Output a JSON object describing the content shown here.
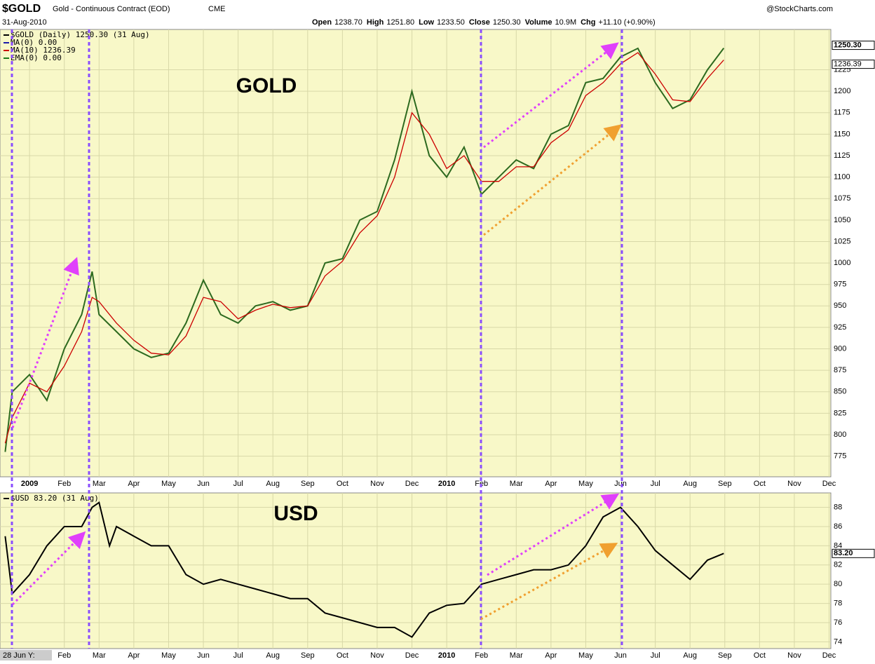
{
  "header": {
    "symbol": "$GOLD",
    "description": "Gold - Continuous Contract (EOD)",
    "exchange": "CME",
    "date": "31-Aug-2010",
    "source": "@StockCharts.com",
    "stats": [
      {
        "label": "Open",
        "value": "1238.70"
      },
      {
        "label": "High",
        "value": "1251.80"
      },
      {
        "label": "Low",
        "value": "1233.50"
      },
      {
        "label": "Close",
        "value": "1250.30"
      },
      {
        "label": "Volume",
        "value": "10.9M"
      },
      {
        "label": "Chg",
        "value": "+11.10 (+0.90%)"
      }
    ]
  },
  "chart_data": [
    {
      "type": "line",
      "legend": [
        "$GOLD (Daily) 1250.30 (31 Aug)",
        "MA(0) 0.00",
        "MA(10) 1236.39",
        "EMA(0) 0.00"
      ],
      "annotations": [
        "GOLD"
      ],
      "last_labels": [
        "1250.30",
        "1236.39"
      ],
      "x": [
        -0.7,
        -0.5,
        0,
        0.5,
        1,
        1.5,
        1.8,
        2,
        2.5,
        3,
        3.5,
        4,
        4.5,
        5,
        5.5,
        6,
        6.5,
        7,
        7.5,
        8,
        8.5,
        9,
        9.5,
        10,
        10.5,
        11,
        11.5,
        12,
        12.5,
        13,
        13.5,
        14,
        14.5,
        15,
        15.5,
        16,
        16.5,
        17,
        17.5,
        18,
        18.5,
        19,
        19.5,
        19.97
      ],
      "series": [
        {
          "name": "$GOLD",
          "color": "#2d6a1f",
          "values": [
            780,
            850,
            870,
            840,
            900,
            940,
            990,
            940,
            920,
            900,
            890,
            895,
            930,
            980,
            940,
            930,
            950,
            955,
            945,
            950,
            1000,
            1005,
            1050,
            1060,
            1120,
            1200,
            1125,
            1100,
            1135,
            1080,
            1100,
            1120,
            1110,
            1150,
            1160,
            1210,
            1215,
            1240,
            1250,
            1210,
            1180,
            1190,
            1225,
            1250.3
          ]
        },
        {
          "name": "MA(10)",
          "color": "#cc0000",
          "values": [
            790,
            820,
            860,
            850,
            880,
            920,
            960,
            955,
            930,
            910,
            895,
            893,
            915,
            960,
            955,
            935,
            945,
            952,
            948,
            950,
            985,
            1002,
            1035,
            1055,
            1100,
            1175,
            1150,
            1110,
            1125,
            1095,
            1095,
            1112,
            1112,
            1140,
            1155,
            1195,
            1210,
            1232,
            1245,
            1220,
            1190,
            1188,
            1215,
            1236.39
          ]
        }
      ],
      "xlim": [
        -0.85,
        23.05
      ],
      "xticks": [
        {
          "value": 0,
          "label": "2009"
        },
        {
          "value": 1,
          "label": "Feb"
        },
        {
          "value": 2,
          "label": "Mar"
        },
        {
          "value": 3,
          "label": "Apr"
        },
        {
          "value": 4,
          "label": "May"
        },
        {
          "value": 5,
          "label": "Jun"
        },
        {
          "value": 6,
          "label": "Jul"
        },
        {
          "value": 7,
          "label": "Aug"
        },
        {
          "value": 8,
          "label": "Sep"
        },
        {
          "value": 9,
          "label": "Oct"
        },
        {
          "value": 10,
          "label": "Nov"
        },
        {
          "value": 11,
          "label": "Dec"
        },
        {
          "value": 12,
          "label": "2010"
        },
        {
          "value": 13,
          "label": "Feb"
        },
        {
          "value": 14,
          "label": "Mar"
        },
        {
          "value": 15,
          "label": "Apr"
        },
        {
          "value": 16,
          "label": "May"
        },
        {
          "value": 17,
          "label": "Jun"
        },
        {
          "value": 18,
          "label": "Jul"
        },
        {
          "value": 19,
          "label": "Aug"
        },
        {
          "value": 20,
          "label": "Sep"
        },
        {
          "value": 21,
          "label": "Oct"
        },
        {
          "value": 22,
          "label": "Nov"
        },
        {
          "value": 23,
          "label": "Dec"
        }
      ],
      "ylim": [
        751,
        1272
      ],
      "yticks": [
        775,
        800,
        825,
        850,
        875,
        900,
        925,
        950,
        975,
        1000,
        1025,
        1050,
        1075,
        1100,
        1125,
        1150,
        1175,
        1200,
        1225
      ],
      "grid": true
    },
    {
      "type": "line",
      "legend": [
        "$USD 83.20 (31 Aug)"
      ],
      "annotations": [
        "USD",
        "28 Jun Y:"
      ],
      "last_labels": [
        "83.20"
      ],
      "x": [
        -0.7,
        -0.5,
        0,
        0.5,
        1,
        1.5,
        1.8,
        2,
        2.3,
        2.5,
        3,
        3.5,
        4,
        4.5,
        5,
        5.5,
        6,
        6.5,
        7,
        7.5,
        8,
        8.5,
        9,
        9.5,
        10,
        10.5,
        11,
        11.5,
        12,
        12.5,
        13,
        13.5,
        14,
        14.5,
        15,
        15.5,
        16,
        16.5,
        17,
        17.5,
        18,
        18.5,
        19,
        19.5,
        19.97
      ],
      "series": [
        {
          "name": "$USD",
          "color": "#000000",
          "values": [
            85,
            79,
            81,
            84,
            86,
            86,
            88,
            88.5,
            84,
            86,
            85,
            84,
            84,
            81,
            80,
            80.5,
            80,
            79.5,
            79,
            78.5,
            78.5,
            77,
            76.5,
            76,
            75.5,
            75.5,
            74.5,
            77,
            77.8,
            78,
            80,
            80.5,
            81,
            81.5,
            81.5,
            82,
            84,
            87,
            88,
            86,
            83.5,
            82,
            80.5,
            82.5,
            83.2
          ]
        }
      ],
      "xlim": [
        -0.85,
        23.05
      ],
      "xticks": [
        {
          "value": 1,
          "label": "Feb"
        },
        {
          "value": 2,
          "label": "Mar"
        },
        {
          "value": 3,
          "label": "Apr"
        },
        {
          "value": 4,
          "label": "May"
        },
        {
          "value": 5,
          "label": "Jun"
        },
        {
          "value": 6,
          "label": "Jul"
        },
        {
          "value": 7,
          "label": "Aug"
        },
        {
          "value": 8,
          "label": "Sep"
        },
        {
          "value": 9,
          "label": "Oct"
        },
        {
          "value": 10,
          "label": "Nov"
        },
        {
          "value": 11,
          "label": "Dec"
        },
        {
          "value": 12,
          "label": "2010"
        },
        {
          "value": 13,
          "label": "Feb"
        },
        {
          "value": 14,
          "label": "Mar"
        },
        {
          "value": 15,
          "label": "Apr"
        },
        {
          "value": 16,
          "label": "May"
        },
        {
          "value": 17,
          "label": "Jun"
        },
        {
          "value": 18,
          "label": "Jul"
        },
        {
          "value": 19,
          "label": "Aug"
        },
        {
          "value": 20,
          "label": "Sep"
        },
        {
          "value": 21,
          "label": "Oct"
        },
        {
          "value": 22,
          "label": "Nov"
        },
        {
          "value": 23,
          "label": "Dec"
        }
      ],
      "ylim": [
        73.3,
        89.5
      ],
      "yticks": [
        74,
        76,
        78,
        80,
        82,
        84,
        86,
        88
      ],
      "grid": true
    }
  ]
}
